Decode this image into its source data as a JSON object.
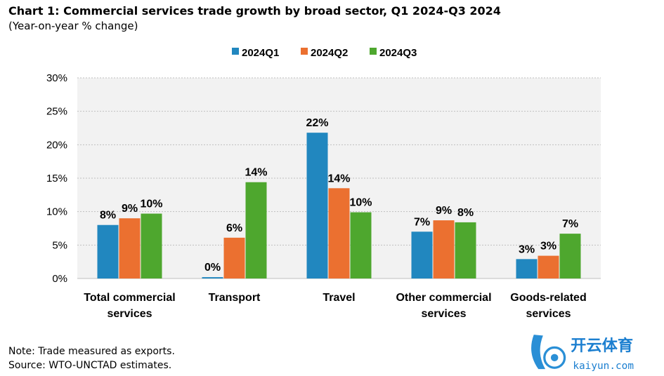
{
  "chart_data": {
    "type": "bar",
    "title": "Chart 1: Commercial services trade growth by broad sector, Q1 2024-Q3 2024",
    "subtitle": "(Year-on-year % change)",
    "categories": [
      [
        "Total commercial",
        "services"
      ],
      [
        "Transport"
      ],
      [
        "Travel"
      ],
      [
        "Other commercial",
        "services"
      ],
      [
        "Goods-related",
        "services"
      ]
    ],
    "series": [
      {
        "name": "2024Q1",
        "color": "#2187BF",
        "values": [
          8.0,
          0.2,
          21.8,
          7.0,
          2.9
        ],
        "labels": [
          "8%",
          "0%",
          "22%",
          "7%",
          "3%"
        ]
      },
      {
        "name": "2024Q2",
        "color": "#EB7030",
        "values": [
          9.0,
          6.1,
          13.5,
          8.7,
          3.4
        ],
        "labels": [
          "9%",
          "6%",
          "14%",
          "9%",
          "3%"
        ]
      },
      {
        "name": "2024Q3",
        "color": "#4EA72E",
        "values": [
          9.7,
          14.4,
          9.9,
          8.4,
          6.7
        ],
        "labels": [
          "10%",
          "14%",
          "10%",
          "8%",
          "7%"
        ]
      }
    ],
    "ylim": [
      0,
      30
    ],
    "yticks": [
      "0%",
      "5%",
      "10%",
      "15%",
      "20%",
      "25%",
      "30%"
    ],
    "grid": true,
    "legend_position": "top-center",
    "plot_background": "#F2F2F2"
  },
  "notes": [
    "Note: Trade measured as exports.",
    "Source: WTO-UNCTAD estimates."
  ],
  "watermark": {
    "text": "开云体育",
    "url": "kaiyun.com"
  }
}
